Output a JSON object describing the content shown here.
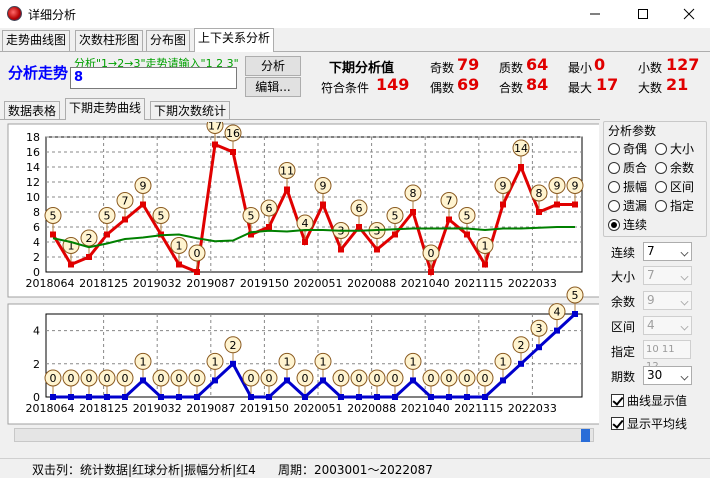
{
  "window": {
    "title": "详细分析"
  },
  "tabs_top": [
    "走势曲线图",
    "次数柱形图",
    "分布图",
    "上下关系分析"
  ],
  "analysis": {
    "heading": "分析走势",
    "hint": "分析\"1→2→3\"走势请输入\"1 2 3\"",
    "input_value": "8",
    "analyze_button": "分析",
    "edit_button": "编辑...",
    "next_label": "下期分析值",
    "match_label": "符合条件",
    "match_value": "149",
    "stats": {
      "odd_label": "奇数",
      "odd_value": "79",
      "even_label": "偶数",
      "even_value": "69",
      "prime_label": "质数",
      "prime_value": "64",
      "composite_label": "合数",
      "composite_value": "84",
      "min_label": "最小",
      "min_value": "0",
      "max_label": "最大",
      "max_value": "17",
      "small_label": "小数",
      "small_value": "127",
      "big_label": "大数",
      "big_value": "21"
    }
  },
  "tabs_panel": [
    "数据表格",
    "下期走势曲线",
    "下期次数统计"
  ],
  "side": {
    "group_title": "分析参数",
    "radios": [
      "奇偶",
      "大小",
      "质合",
      "余数",
      "振幅",
      "区间",
      "遗漏",
      "指定",
      "连续"
    ],
    "selected_radio": "连续",
    "fields": [
      {
        "label": "连续",
        "value": "7",
        "enabled": true
      },
      {
        "label": "大小",
        "value": "7",
        "enabled": false
      },
      {
        "label": "余数",
        "value": "9",
        "enabled": false
      },
      {
        "label": "区间",
        "value": "4",
        "enabled": false
      }
    ],
    "zhiding_label": "指定",
    "zhiding_value": "10 11 12",
    "qishu_label": "期数",
    "qishu_value": "30",
    "check_values": "曲线显示值",
    "check_average": "显示平均线"
  },
  "status": {
    "left": "双击列：统计数据|红球分析|振幅分析|红4",
    "right": "周期：2003001～2022087"
  },
  "colors": {
    "accent": "#0000ff",
    "value_red": "#e00000",
    "hint_green": "#00a000",
    "line_red": "#e00000",
    "line_green": "#008000",
    "line_blue": "#0000cc",
    "label_fill": "#fff4d0"
  },
  "chart_data": [
    {
      "type": "line",
      "x_tick_labels": [
        "2018064",
        "2018125",
        "2019032",
        "2019087",
        "2019150",
        "2020051",
        "2020088",
        "2021040",
        "2021115",
        "2022033"
      ],
      "y_ticks": [
        0,
        2,
        4,
        6,
        8,
        10,
        12,
        14,
        16,
        18
      ],
      "ylim": [
        0,
        18
      ],
      "series": [
        {
          "values": [
            5,
            1,
            2,
            5,
            7,
            9,
            5,
            1,
            0,
            17,
            16,
            5,
            6,
            11,
            4,
            9,
            3,
            6,
            3,
            5,
            8,
            0,
            7,
            5,
            1,
            9,
            14,
            8,
            9,
            9
          ],
          "show_labels": true
        },
        {
          "values": [
            4.5,
            4.0,
            3.3,
            3.8,
            4.4,
            4.6,
            4.9,
            5.0,
            4.5,
            4.1,
            4.2,
            5.3,
            5.5,
            5.4,
            5.6,
            5.6,
            5.5,
            5.5,
            5.6,
            5.7,
            5.8,
            5.8,
            5.8,
            5.8,
            5.6,
            5.8,
            5.8,
            5.9,
            6.0,
            6.0
          ],
          "show_labels": false
        }
      ]
    },
    {
      "type": "line",
      "x_tick_labels": [
        "2018064",
        "2018125",
        "2019032",
        "2019087",
        "2019150",
        "2020051",
        "2020088",
        "2021040",
        "2021115",
        "2022033"
      ],
      "y_ticks": [
        0,
        2,
        4
      ],
      "ylim": [
        0,
        5
      ],
      "series": [
        {
          "values": [
            0,
            0,
            0,
            0,
            0,
            1,
            0,
            0,
            0,
            1,
            2,
            0,
            0,
            1,
            0,
            1,
            0,
            0,
            0,
            0,
            1,
            0,
            0,
            0,
            0,
            1,
            2,
            3,
            4,
            5
          ],
          "show_labels": true
        }
      ]
    }
  ]
}
